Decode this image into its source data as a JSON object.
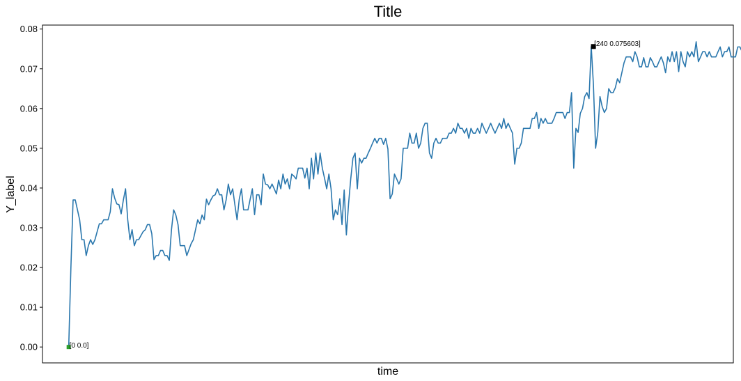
{
  "chart_data": {
    "type": "line",
    "title": "Title",
    "xlabel": "time",
    "ylabel": "Y_label",
    "ylim": [
      -0.004,
      0.081
    ],
    "xlim": [
      -12,
      304
    ],
    "yticks": [
      "0.00",
      "0.01",
      "0.02",
      "0.03",
      "0.04",
      "0.05",
      "0.06",
      "0.07",
      "0.08"
    ],
    "grid": false,
    "colors": {
      "line": "#2a77ad",
      "start_marker": "#2ca02c",
      "max_marker": "#000000"
    },
    "series": [
      {
        "values": [
          0,
          0.02,
          0.037,
          0.037,
          0.0345,
          0.032,
          0.027,
          0.027,
          0.023,
          0.0255,
          0.027,
          0.0258,
          0.027,
          0.029,
          0.031,
          0.031,
          0.032,
          0.032,
          0.032,
          0.034,
          0.0398,
          0.0375,
          0.036,
          0.0358,
          0.0335,
          0.037,
          0.0398,
          0.032,
          0.027,
          0.0295,
          0.0255,
          0.027,
          0.027,
          0.028,
          0.029,
          0.0295,
          0.0308,
          0.0308,
          0.0285,
          0.022,
          0.023,
          0.023,
          0.0243,
          0.0243,
          0.023,
          0.023,
          0.0218,
          0.0295,
          0.0345,
          0.0332,
          0.0308,
          0.0255,
          0.0255,
          0.0255,
          0.023,
          0.0245,
          0.026,
          0.027,
          0.0295,
          0.032,
          0.031,
          0.0332,
          0.032,
          0.0372,
          0.0358,
          0.037,
          0.038,
          0.0383,
          0.0398,
          0.0383,
          0.0383,
          0.0345,
          0.037,
          0.041,
          0.0383,
          0.0398,
          0.0358,
          0.032,
          0.0372,
          0.0398,
          0.0345,
          0.0345,
          0.0345,
          0.0372,
          0.0398,
          0.0333,
          0.0383,
          0.0383,
          0.0358,
          0.0435,
          0.041,
          0.0408,
          0.0398,
          0.041,
          0.0398,
          0.0385,
          0.042,
          0.0398,
          0.0435,
          0.041,
          0.0423,
          0.0398,
          0.0435,
          0.043,
          0.0423,
          0.045,
          0.045,
          0.045,
          0.0425,
          0.045,
          0.0398,
          0.0475,
          0.0423,
          0.0488,
          0.0435,
          0.0488,
          0.045,
          0.0425,
          0.0398,
          0.0435,
          0.0398,
          0.032,
          0.0345,
          0.0333,
          0.0373,
          0.0308,
          0.0395,
          0.0282,
          0.036,
          0.0423,
          0.0475,
          0.0488,
          0.0398,
          0.0475,
          0.0463,
          0.0475,
          0.0475,
          0.0488,
          0.05,
          0.0513,
          0.0525,
          0.0513,
          0.0525,
          0.0525,
          0.051,
          0.0525,
          0.0498,
          0.0373,
          0.0385,
          0.0435,
          0.0423,
          0.041,
          0.0423,
          0.05,
          0.05,
          0.05,
          0.0538,
          0.0513,
          0.0513,
          0.0538,
          0.05,
          0.0513,
          0.055,
          0.0563,
          0.0563,
          0.0488,
          0.0475,
          0.0513,
          0.0525,
          0.0513,
          0.0513,
          0.0525,
          0.0525,
          0.0525,
          0.0538,
          0.0538,
          0.055,
          0.0538,
          0.0563,
          0.055,
          0.055,
          0.0538,
          0.055,
          0.0525,
          0.055,
          0.0538,
          0.0538,
          0.055,
          0.0538,
          0.0563,
          0.055,
          0.0538,
          0.055,
          0.0563,
          0.055,
          0.0538,
          0.055,
          0.0563,
          0.055,
          0.0575,
          0.055,
          0.0563,
          0.055,
          0.0538,
          0.046,
          0.05,
          0.05,
          0.0513,
          0.055,
          0.055,
          0.055,
          0.055,
          0.0575,
          0.0575,
          0.059,
          0.055,
          0.0575,
          0.0563,
          0.0575,
          0.0563,
          0.0563,
          0.0563,
          0.0575,
          0.059,
          0.059,
          0.059,
          0.059,
          0.0575,
          0.059,
          0.059,
          0.064,
          0.045,
          0.055,
          0.054,
          0.0588,
          0.06,
          0.063,
          0.064,
          0.0625,
          0.075603,
          0.066,
          0.05,
          0.054,
          0.063,
          0.0605,
          0.059,
          0.06,
          0.065,
          0.064,
          0.064,
          0.0652,
          0.0675,
          0.0665,
          0.069,
          0.0715,
          0.073,
          0.073,
          0.073,
          0.0718,
          0.0743,
          0.073,
          0.0705,
          0.0705,
          0.0728,
          0.0705,
          0.0705,
          0.0728,
          0.0718,
          0.0705,
          0.0705,
          0.0718,
          0.073,
          0.0715,
          0.069,
          0.073,
          0.0718,
          0.0743,
          0.0718,
          0.0743,
          0.0693,
          0.0743,
          0.0718,
          0.0705,
          0.0743,
          0.073,
          0.0743,
          0.073,
          0.0768,
          0.0718,
          0.073,
          0.0743,
          0.0743,
          0.073,
          0.0743,
          0.073,
          0.073,
          0.073,
          0.0743,
          0.0755,
          0.073,
          0.0743,
          0.0743,
          0.0755,
          0.073,
          0.073,
          0.073,
          0.0755,
          0.0755,
          0.0743,
          0.073,
          0.0755,
          0.0743,
          0.0718
        ]
      }
    ],
    "annotations": [
      {
        "x": 0,
        "y": 0.0,
        "text": "[0 0.0]"
      },
      {
        "x": 240,
        "y": 0.075603,
        "text": "[240 0.075603]"
      }
    ]
  }
}
